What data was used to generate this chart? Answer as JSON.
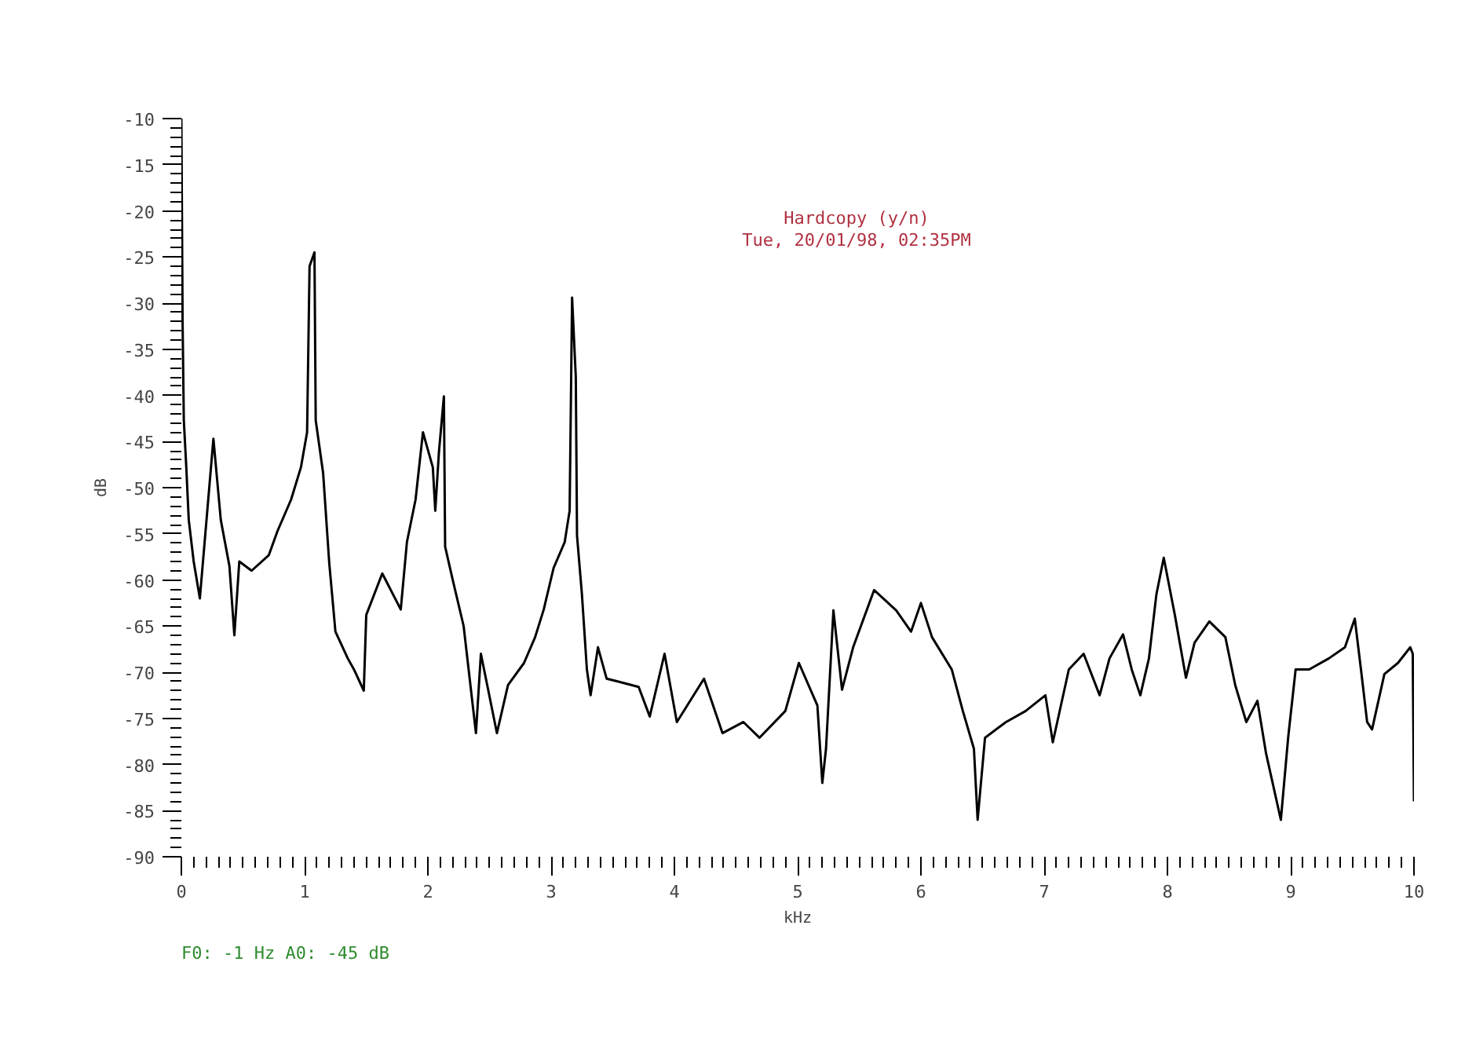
{
  "chart_data": {
    "type": "line",
    "xlabel": "kHz",
    "ylabel": "dB",
    "annotations": [
      "Hardcopy (y/n)",
      "Tue, 20/01/98, 02:35PM",
      "F0: -1 Hz   A0: -45 dB"
    ],
    "xlim": [
      0,
      10
    ],
    "ylim": [
      -90,
      -10
    ],
    "xticks": [
      0,
      1,
      2,
      3,
      4,
      5,
      6,
      7,
      8,
      9,
      10
    ],
    "yticks": [
      -10,
      -15,
      -20,
      -25,
      -30,
      -35,
      -40,
      -45,
      -50,
      -55,
      -60,
      -65,
      -70,
      -75,
      -80,
      -85,
      -90
    ],
    "grid": false,
    "line_style": "solid",
    "series": [
      {
        "color": "#000000",
        "x": [
          0.0,
          0.01,
          0.02,
          0.04,
          0.06,
          0.1,
          0.15,
          0.26,
          0.32,
          0.39,
          0.43,
          0.47,
          0.57,
          0.71,
          0.78,
          0.89,
          0.97,
          1.02,
          1.04,
          1.08,
          1.09,
          1.15,
          1.2,
          1.25,
          1.35,
          1.4,
          1.48,
          1.5,
          1.63,
          1.78,
          1.83,
          1.9,
          1.96,
          2.04,
          2.06,
          2.09,
          2.13,
          2.14,
          2.2,
          2.29,
          2.39,
          2.43,
          2.56,
          2.65,
          2.78,
          2.87,
          2.94,
          3.02,
          3.11,
          3.15,
          3.17,
          3.2,
          3.21,
          3.25,
          3.29,
          3.32,
          3.38,
          3.45,
          3.54,
          3.71,
          3.8,
          3.92,
          4.02,
          4.24,
          4.39,
          4.56,
          4.69,
          4.9,
          5.01,
          5.16,
          5.2,
          5.23,
          5.29,
          5.36,
          5.45,
          5.62,
          5.8,
          5.92,
          6.0,
          6.09,
          6.25,
          6.34,
          6.43,
          6.46,
          6.52,
          6.69,
          6.85,
          7.01,
          7.07,
          7.2,
          7.32,
          7.45,
          7.53,
          7.64,
          7.71,
          7.78,
          7.85,
          7.91,
          7.97,
          8.06,
          8.15,
          8.22,
          8.34,
          8.47,
          8.55,
          8.64,
          8.73,
          8.8,
          8.92,
          8.98,
          9.04,
          9.15,
          9.31,
          9.44,
          9.52,
          9.57,
          9.62,
          9.66,
          9.76,
          9.87,
          9.97,
          9.99,
          10.0
        ],
        "values": [
          -10,
          -32,
          -42.7,
          -47.8,
          -53.5,
          -58,
          -62,
          -44.7,
          -53.5,
          -58.5,
          -66,
          -58,
          -59,
          -57.3,
          -54.7,
          -51.3,
          -47.8,
          -44,
          -26,
          -24.5,
          -42.7,
          -48.4,
          -58.2,
          -65.6,
          -68.5,
          -69.7,
          -72,
          -63.8,
          -59.3,
          -63.2,
          -55.9,
          -51.3,
          -44,
          -47.8,
          -52.5,
          -46.1,
          -40.1,
          -56.4,
          -59.9,
          -65,
          -76.6,
          -68,
          -76.6,
          -71.4,
          -69,
          -66.2,
          -63.2,
          -58.7,
          -55.9,
          -52.5,
          -29.4,
          -38,
          -55.2,
          -61.6,
          -69.7,
          -72.5,
          -67.3,
          -70.7,
          -71,
          -71.6,
          -74.8,
          -68,
          -75.4,
          -70.7,
          -76.6,
          -75.4,
          -77.1,
          -74.2,
          -69,
          -73.6,
          -82,
          -78.3,
          -63.3,
          -71.9,
          -67.3,
          -61.1,
          -63.3,
          -65.6,
          -62.5,
          -66.2,
          -69.7,
          -74.2,
          -78.3,
          -86,
          -77.1,
          -75.4,
          -74.2,
          -72.5,
          -77.6,
          -69.7,
          -68,
          -72.5,
          -68.5,
          -65.9,
          -69.7,
          -72.5,
          -68.5,
          -61.6,
          -57.6,
          -63.8,
          -70.6,
          -66.8,
          -64.5,
          -66.2,
          -71.4,
          -75.4,
          -73.1,
          -78.8,
          -86,
          -77,
          -69.7,
          -69.7,
          -68.5,
          -67.3,
          -64.2,
          -69.7,
          -75.4,
          -76.2,
          -70.2,
          -69,
          -67.3,
          -68,
          -84
        ]
      }
    ]
  }
}
